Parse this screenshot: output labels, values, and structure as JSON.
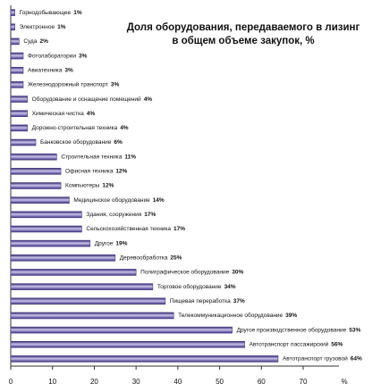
{
  "chart_data": {
    "type": "bar",
    "orientation": "horizontal",
    "title": [
      "Доля оборудования, передаваемого в лизинг",
      "в общем объеме закупок, %"
    ],
    "xlabel": "%",
    "categories": [
      "Горнодобывающее",
      "Электронное",
      "Суда",
      "Фотолаборатории",
      "Авиатехника",
      "Железнодорожный транспорт",
      "Оборудование и оснащение помещений",
      "Химическая чистка",
      "Дорожно-строительная техника",
      "Банковское оборудование",
      "Строительная техника",
      "Офисная техника",
      "Компьютеры",
      "Медицинское оборудование",
      "Здания, сооружения",
      "Сельскохозяйственная техника",
      "Другое",
      "Деревообработка",
      "Полиграфическое оборудование",
      "Торговое оборудование",
      "Пищевая переработка",
      "Телекоммуникационное оборудование",
      "Другое производственное оборудование",
      "Автотранспорт пассажирский",
      "Автотранспорт грузовой"
    ],
    "values": [
      1,
      1,
      2,
      3,
      3,
      3,
      4,
      4,
      4,
      6,
      11,
      12,
      12,
      14,
      17,
      17,
      19,
      25,
      30,
      34,
      37,
      39,
      53,
      56,
      64
    ],
    "value_labels": [
      "1%",
      "1%",
      "2%",
      "3%",
      "3%",
      "3%",
      "4%",
      "4%",
      "4%",
      "6%",
      "11%",
      "12%",
      "12%",
      "14%",
      "17%",
      "17%",
      "19%",
      "25%",
      "30%",
      "34%",
      "37%",
      "39%",
      "53%",
      "56%",
      "64%"
    ],
    "color": "#4a3f8c",
    "xlim": [
      0,
      70
    ],
    "xticks": [
      0,
      10,
      20,
      30,
      40,
      50,
      60,
      70
    ]
  }
}
